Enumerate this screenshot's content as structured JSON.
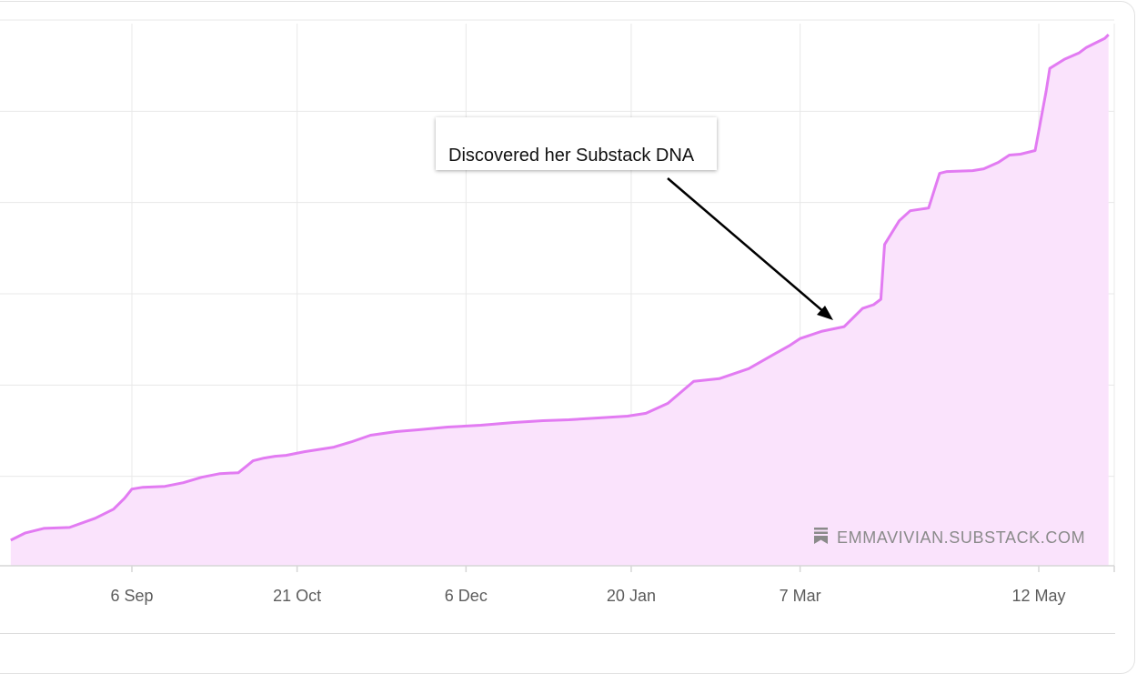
{
  "chart_data": {
    "type": "area",
    "x_ticks": [
      "6 Sep",
      "21 Oct",
      "6 Dec",
      "20 Jan",
      "7 Mar",
      "12 May"
    ],
    "x_tick_days": [
      0,
      45,
      91,
      136,
      182,
      247
    ],
    "x_range_days": [
      -33,
      266
    ],
    "y_range": [
      0,
      6
    ],
    "y_gridlines": [
      1,
      2,
      3,
      4,
      5,
      6
    ],
    "grid": true,
    "series": [
      {
        "x_days": [
          -33,
          -29,
          -24,
          -17,
          -10,
          -5,
          -2,
          0,
          3,
          9,
          14,
          19,
          24,
          29,
          33,
          36,
          39,
          42,
          47,
          55,
          60,
          65,
          72,
          78,
          86,
          95,
          104,
          112,
          119,
          127,
          135,
          140,
          146,
          153,
          160,
          168,
          175,
          179,
          182,
          188,
          194,
          199,
          202,
          204,
          205,
          209,
          212,
          217,
          220,
          222,
          229,
          232,
          236,
          239,
          242,
          246,
          249,
          250,
          254,
          258,
          260,
          262,
          265,
          266
        ],
        "values": [
          0.28,
          0.36,
          0.41,
          0.42,
          0.52,
          0.62,
          0.74,
          0.84,
          0.86,
          0.87,
          0.91,
          0.97,
          1.01,
          1.02,
          1.15,
          1.18,
          1.2,
          1.21,
          1.25,
          1.3,
          1.36,
          1.43,
          1.47,
          1.49,
          1.52,
          1.54,
          1.57,
          1.59,
          1.6,
          1.62,
          1.64,
          1.67,
          1.78,
          2.02,
          2.05,
          2.16,
          2.32,
          2.41,
          2.49,
          2.57,
          2.62,
          2.82,
          2.86,
          2.92,
          3.52,
          3.78,
          3.89,
          3.92,
          4.3,
          4.32,
          4.33,
          4.35,
          4.42,
          4.5,
          4.51,
          4.55,
          5.2,
          5.45,
          5.55,
          5.62,
          5.68,
          5.72,
          5.78,
          5.82
        ]
      }
    ],
    "annotations": [
      {
        "text": "Discovered her Substack DNA",
        "arrow_to_day": 178
      }
    ]
  },
  "watermark": {
    "text": "EMMAVIVIAN.SUBSTACK.COM",
    "icon": "substack-icon",
    "color": "#8a8a8a"
  },
  "colors": {
    "line": "#e27bf2",
    "fill": "#fae3fc",
    "grid": "#e8e8e8",
    "axis": "#d6d6d6",
    "tick_text": "#5c5c5c"
  }
}
